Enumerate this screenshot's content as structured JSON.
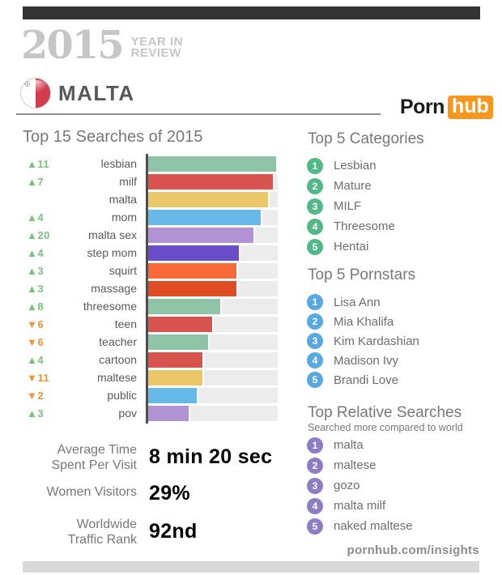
{
  "header": {
    "year": "2015",
    "year_in": "YEAR IN",
    "review": "REVIEW",
    "country": "MALTA",
    "flag": "malta-flag",
    "brand_porn": "Porn",
    "brand_hub": "hub",
    "brand_hub_bg": "#f7971d"
  },
  "chart_data": {
    "type": "bar",
    "orientation": "horizontal",
    "title": "Top 15 Searches of 2015",
    "xlabel": "",
    "ylabel": "",
    "value_unit": "percent of top search bar length",
    "xlim": [
      0,
      100
    ],
    "grid": false,
    "up_color": "#79c17d",
    "down_color": "#f39237",
    "track_color": "#ececec",
    "series": [
      {
        "label": "lesbian",
        "change": 11,
        "value": 100,
        "color": "#8ec3a7"
      },
      {
        "label": "milf",
        "change": 7,
        "value": 97.5,
        "color": "#d9534f"
      },
      {
        "label": "malta",
        "change": null,
        "value": 94,
        "color": "#eac869"
      },
      {
        "label": "mom",
        "change": 4,
        "value": 88,
        "color": "#66b9e8"
      },
      {
        "label": "malta sex",
        "change": 20,
        "value": 82.5,
        "color": "#b192d2"
      },
      {
        "label": "step mom",
        "change": 4,
        "value": 71,
        "color": "#6a4ec9"
      },
      {
        "label": "squirt",
        "change": 3,
        "value": 69.5,
        "color": "#fa6a38"
      },
      {
        "label": "massage",
        "change": 3,
        "value": 69.5,
        "color": "#e04d24"
      },
      {
        "label": "threesome",
        "change": 8,
        "value": 57,
        "color": "#8ec3a7"
      },
      {
        "label": "teen",
        "change": -6,
        "value": 50.5,
        "color": "#d9534f"
      },
      {
        "label": "teacher",
        "change": -6,
        "value": 47.5,
        "color": "#8ec3a7"
      },
      {
        "label": "cartoon",
        "change": 4,
        "value": 43,
        "color": "#d9534f"
      },
      {
        "label": "maltese",
        "change": -11,
        "value": 43,
        "color": "#eac869"
      },
      {
        "label": "public",
        "change": -2,
        "value": 39,
        "color": "#66b9e8"
      },
      {
        "label": "pov",
        "change": 3,
        "value": 32.5,
        "color": "#b192d2"
      }
    ]
  },
  "stats": {
    "avg_time": {
      "label_line1": "Average Time",
      "label_line2": "Spent Per Visit",
      "value": "8 min 20 sec",
      "color": "#5aabdf"
    },
    "women": {
      "label_line1": "Women Visitors",
      "label_line2": "",
      "value": "29%",
      "color": "#de64be"
    },
    "traffic": {
      "label_line1": "Worldwide",
      "label_line2": "Traffic Rank",
      "value": "92nd",
      "color": "#f8693f"
    }
  },
  "right_column": {
    "categories": {
      "title": "Top 5 Categories",
      "accent": "#53b888",
      "items": [
        "Lesbian",
        "Mature",
        "MILF",
        "Threesome",
        "Hentai"
      ]
    },
    "pornstars": {
      "title": "Top 5 Pornstars",
      "accent": "#58a9e0",
      "items": [
        "Lisa Ann",
        "Mia Khalifa",
        "Kim Kardashian",
        "Madison Ivy",
        "Brandi Love"
      ]
    },
    "relative": {
      "title": "Top Relative Searches",
      "subtitle": "Searched more compared to world",
      "accent": "#8d7dc3",
      "items": [
        "malta",
        "maltese",
        "gozo",
        "malta milf",
        "naked maltese"
      ]
    }
  },
  "footer": {
    "url": "pornhub.com/insights"
  }
}
